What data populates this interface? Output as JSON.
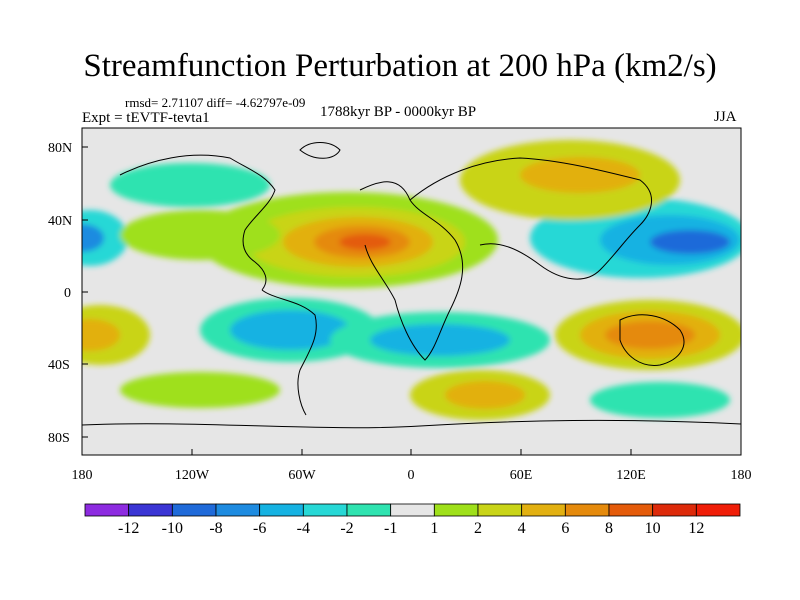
{
  "title": "Streamfunction Perturbation at 200 hPa (km2/s)",
  "stats": "rmsd= 2.71107 diff= -4.62797e-09",
  "experiment": "Expt = tEVTF-tevta1",
  "period": "1788kyr BP - 0000kyr BP",
  "season": "JJA",
  "axes": {
    "lat_ticks": [
      "80N",
      "40N",
      "0",
      "40S",
      "80S"
    ],
    "lon_ticks": [
      "180",
      "120W",
      "60W",
      "0",
      "60E",
      "120E",
      "180"
    ]
  },
  "colorbar": {
    "labels": [
      "-12",
      "-10",
      "-8",
      "-6",
      "-4",
      "-2",
      "-1",
      "1",
      "2",
      "4",
      "6",
      "8",
      "10",
      "12"
    ],
    "colors": [
      "#8d2be0",
      "#3b35d4",
      "#1f6ad9",
      "#1e8be0",
      "#15b2e2",
      "#27d8d6",
      "#2fe3b0",
      "#e6e6e6",
      "#9fe01a",
      "#c9d418",
      "#e2b011",
      "#e58a0c",
      "#e45b0a",
      "#dd2a0a",
      "#f01e08"
    ]
  },
  "legend_colors": {
    "land_outline": "#000000",
    "near_zero": "#e6e6e6"
  }
}
